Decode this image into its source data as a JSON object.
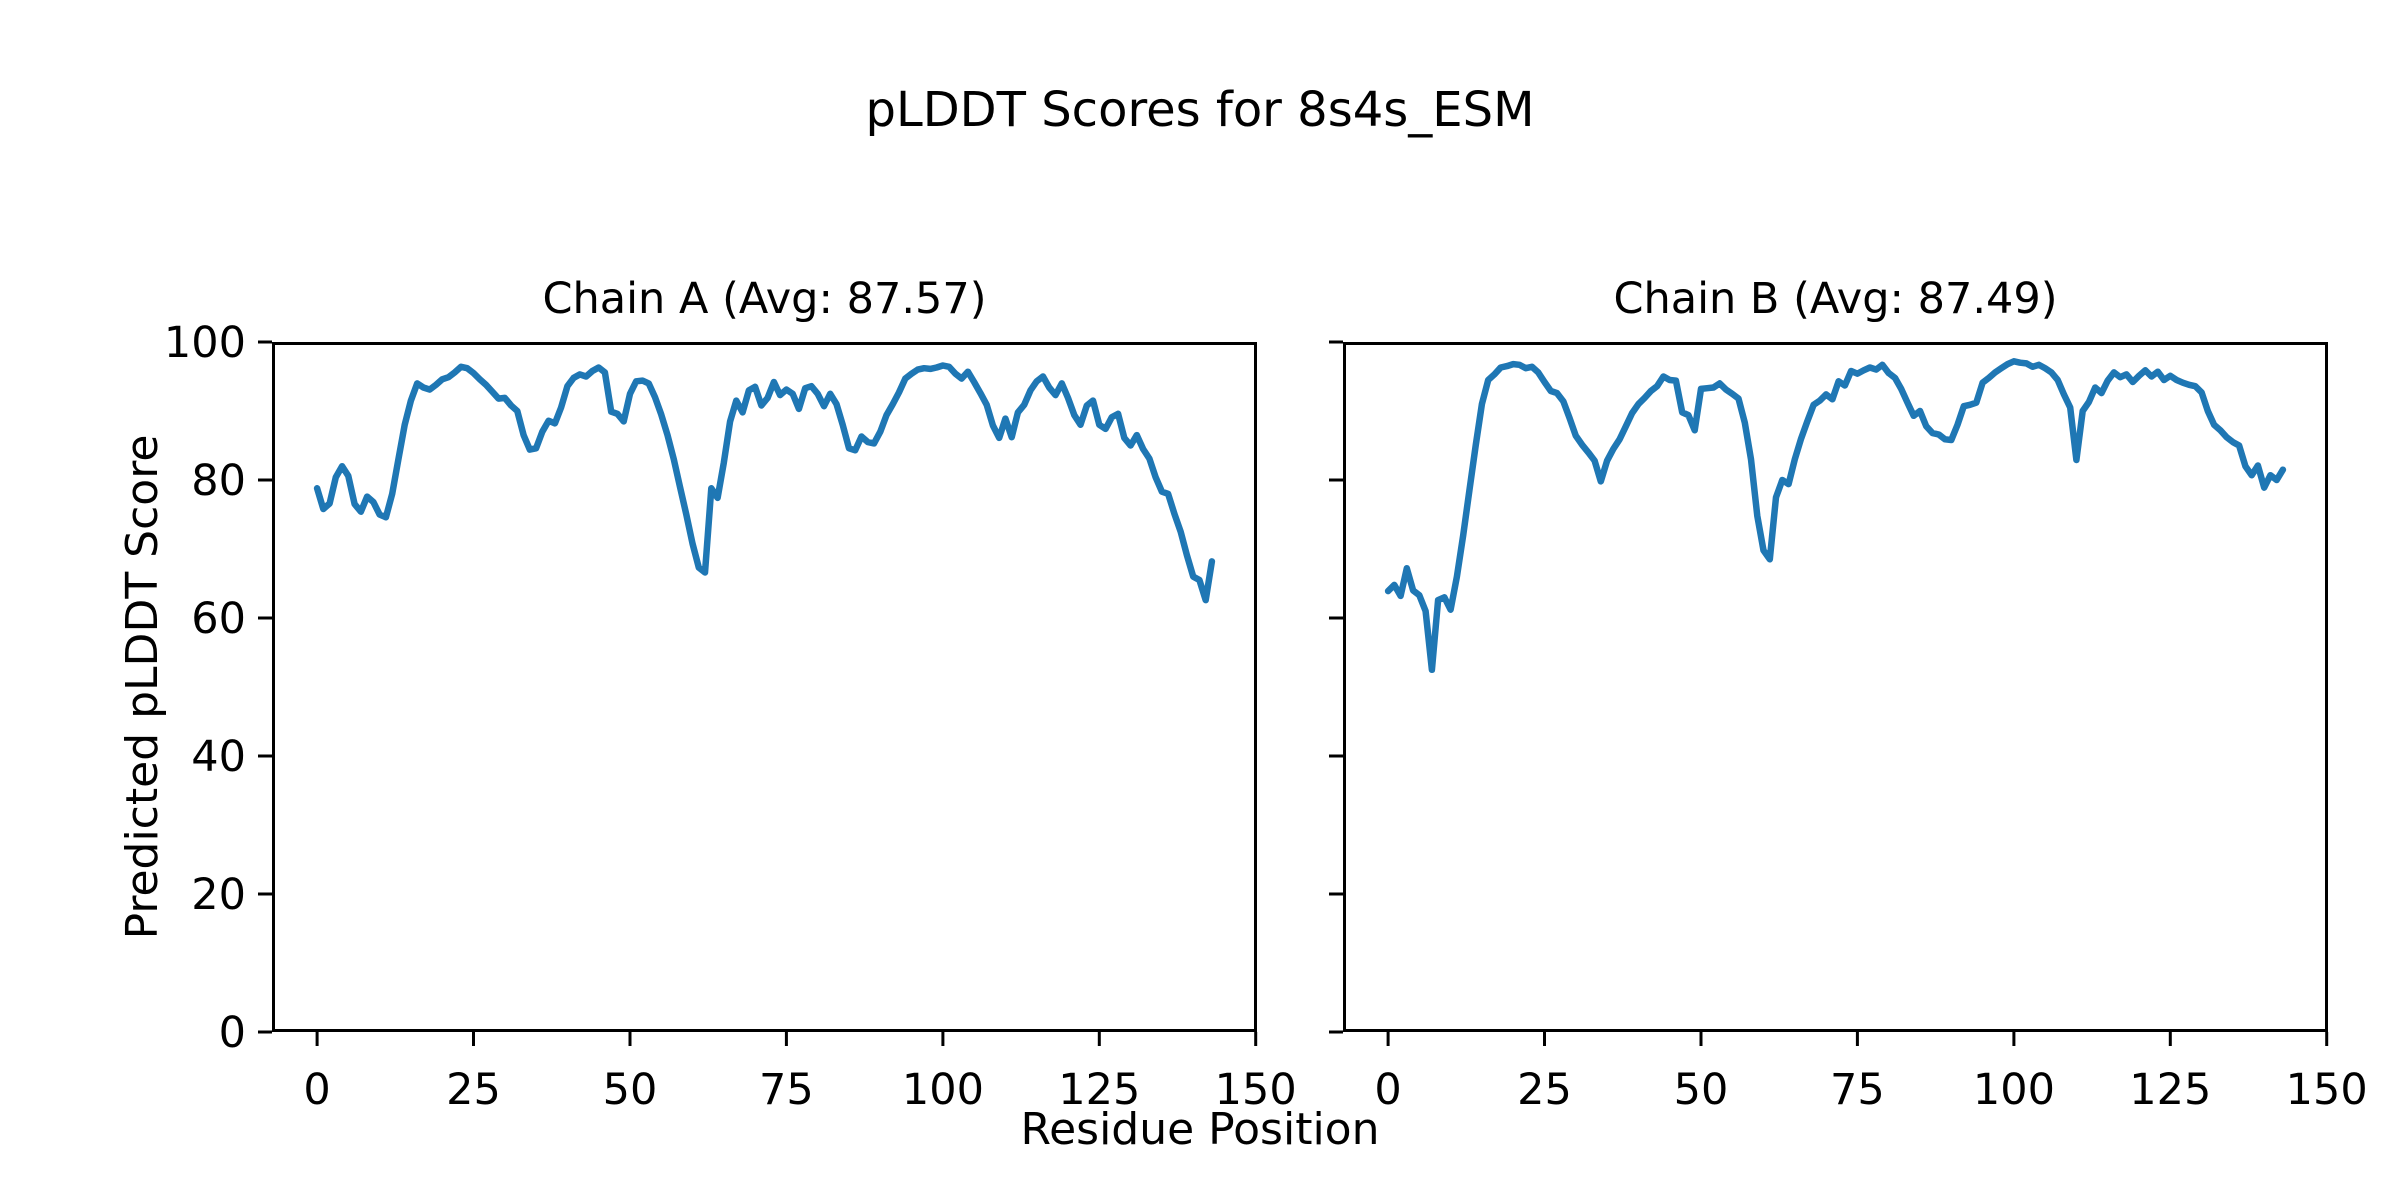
{
  "figure": {
    "title": "pLDDT Scores for 8s4s_ESM",
    "xlabel": "Residue Position",
    "ylabel": "Predicted pLDDT Score",
    "background": "#ffffff",
    "text_color": "#000000",
    "spine_color": "#000000"
  },
  "chart_data": [
    {
      "type": "line",
      "title": "Chain A (Avg: 87.57)",
      "chain": "A",
      "average_plddt": 87.57,
      "line_color": "#1f77b4",
      "x_start": 0,
      "x_step": 1,
      "xlim": [
        -7.2,
        150.2
      ],
      "ylim": [
        0,
        100
      ],
      "xticks": [
        0,
        25,
        50,
        75,
        100,
        125,
        150
      ],
      "yticks": [
        0,
        20,
        40,
        60,
        80,
        100
      ],
      "show_ytick_labels": true,
      "grid": false,
      "legend": "none",
      "values": [
        78.8,
        75.8,
        76.6,
        80.4,
        82.0,
        80.6,
        76.5,
        75.4,
        77.6,
        76.8,
        75.0,
        74.6,
        78.0,
        83.0,
        88.0,
        91.5,
        94.0,
        93.4,
        93.1,
        93.8,
        94.6,
        94.9,
        95.6,
        96.4,
        96.2,
        95.5,
        94.6,
        93.8,
        92.8,
        91.8,
        91.9,
        90.8,
        90.0,
        86.5,
        84.4,
        84.6,
        87.0,
        88.6,
        88.2,
        90.5,
        93.6,
        94.8,
        95.3,
        95.0,
        95.8,
        96.3,
        95.6,
        89.9,
        89.6,
        88.5,
        92.5,
        94.3,
        94.4,
        94.0,
        92.0,
        89.5,
        86.5,
        83.0,
        79.0,
        75.0,
        70.8,
        67.3,
        66.6,
        78.8,
        77.4,
        82.5,
        88.5,
        91.5,
        89.8,
        93.0,
        93.5,
        90.8,
        91.9,
        94.2,
        92.3,
        93.1,
        92.5,
        90.3,
        93.3,
        93.6,
        92.5,
        90.7,
        92.5,
        91.0,
        88.0,
        84.6,
        84.3,
        86.3,
        85.5,
        85.3,
        87.0,
        89.4,
        91.0,
        92.7,
        94.7,
        95.4,
        96.0,
        96.2,
        96.1,
        96.3,
        96.6,
        96.4,
        95.4,
        94.7,
        95.7,
        94.2,
        92.6,
        90.9,
        87.9,
        86.1,
        88.9,
        86.2,
        89.8,
        90.9,
        93.0,
        94.3,
        95.0,
        93.4,
        92.3,
        94.0,
        91.9,
        89.4,
        88.0,
        90.8,
        91.5,
        88.0,
        87.4,
        89.1,
        89.6,
        86.1,
        85.0,
        86.5,
        84.5,
        83.1,
        80.4,
        78.3,
        78.0,
        75.1,
        72.5,
        69.1,
        66.0,
        65.5,
        62.6,
        68.2
      ]
    },
    {
      "type": "line",
      "title": "Chain B (Avg: 87.49)",
      "chain": "B",
      "average_plddt": 87.49,
      "line_color": "#1f77b4",
      "x_start": 0,
      "x_step": 1,
      "xlim": [
        -7.2,
        150.2
      ],
      "ylim": [
        0,
        100
      ],
      "xticks": [
        0,
        25,
        50,
        75,
        100,
        125,
        150
      ],
      "yticks": [
        0,
        20,
        40,
        60,
        80,
        100
      ],
      "show_ytick_labels": false,
      "grid": false,
      "legend": "none",
      "values": [
        63.9,
        64.8,
        63.2,
        67.2,
        64.0,
        63.3,
        61.0,
        52.5,
        62.6,
        63.0,
        61.2,
        66.0,
        72.0,
        78.5,
        85.0,
        91.0,
        94.5,
        95.3,
        96.3,
        96.5,
        96.8,
        96.7,
        96.2,
        96.4,
        95.6,
        94.2,
        92.9,
        92.6,
        91.4,
        89.0,
        86.4,
        85.1,
        84.0,
        82.8,
        79.8,
        82.8,
        84.5,
        85.9,
        87.8,
        89.7,
        91.0,
        91.9,
        92.9,
        93.6,
        95.0,
        94.5,
        94.4,
        89.8,
        89.4,
        87.2,
        93.2,
        93.3,
        93.4,
        94.0,
        93.1,
        92.5,
        91.8,
        88.3,
        83.0,
        74.8,
        69.8,
        68.5,
        77.5,
        80.0,
        79.4,
        83.0,
        86.0,
        88.5,
        90.9,
        91.5,
        92.4,
        91.7,
        94.3,
        93.7,
        95.8,
        95.4,
        95.9,
        96.3,
        96.0,
        96.7,
        95.5,
        94.8,
        93.2,
        91.2,
        89.3,
        90.0,
        87.8,
        86.8,
        86.6,
        85.9,
        85.8,
        88.0,
        90.7,
        90.9,
        91.2,
        94.1,
        94.8,
        95.6,
        96.2,
        96.8,
        97.2,
        97.0,
        96.9,
        96.4,
        96.7,
        96.2,
        95.6,
        94.5,
        92.4,
        90.5,
        82.9,
        90.0,
        91.3,
        93.4,
        92.6,
        94.4,
        95.6,
        94.9,
        95.3,
        94.2,
        95.1,
        95.9,
        95.0,
        95.7,
        94.5,
        95.1,
        94.5,
        94.1,
        93.8,
        93.6,
        92.7,
        90.0,
        88.0,
        87.2,
        86.2,
        85.5,
        85.0,
        82.0,
        80.7,
        82.1,
        78.9,
        80.7,
        80.0,
        81.5
      ]
    }
  ]
}
